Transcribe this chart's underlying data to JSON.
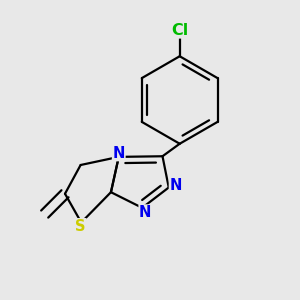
{
  "bg_color": "#e8e8e8",
  "bond_color": "#000000",
  "bond_width": 1.6,
  "atom_colors": {
    "N": "#0000ee",
    "S": "#cccc00",
    "Cl": "#00bb00",
    "C": "#000000"
  },
  "font_size_atom": 10.5
}
